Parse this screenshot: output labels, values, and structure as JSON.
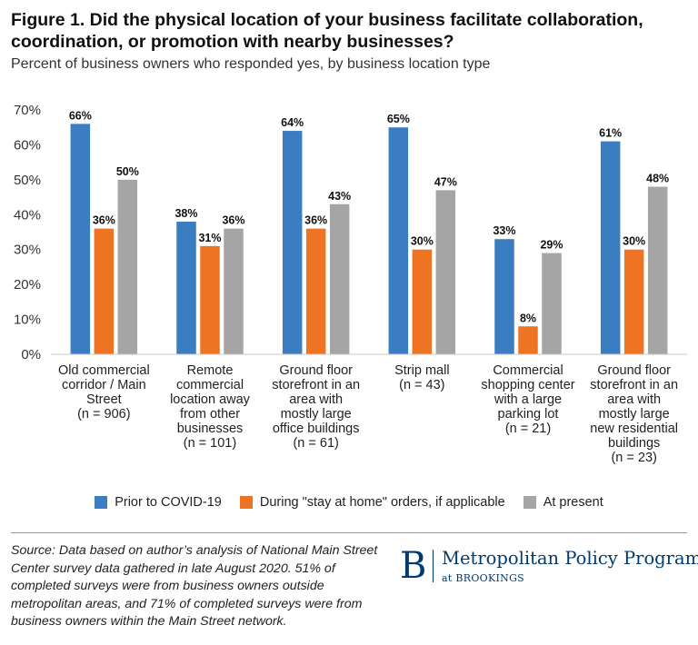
{
  "header": {
    "title": "Figure 1. Did the physical location of your business facilitate collaboration, coordination, or promotion with nearby businesses?",
    "subtitle": "Percent of business owners who responded yes, by business location type"
  },
  "colors": {
    "prior": "#3a7dc1",
    "during": "#ee7323",
    "present": "#a5a5a5",
    "brand": "#003a70"
  },
  "chart_data": {
    "type": "bar",
    "title": "Figure 1. Did the physical location of your business facilitate collaboration, coordination, or promotion with nearby businesses?",
    "subtitle": "Percent of business owners who responded yes, by business location type",
    "xlabel": "",
    "ylabel": "",
    "ylim": [
      0,
      70
    ],
    "yticks": [
      0,
      10,
      20,
      30,
      40,
      50,
      60,
      70
    ],
    "ytick_labels": [
      "0%",
      "10%",
      "20%",
      "30%",
      "40%",
      "50%",
      "60%",
      "70%"
    ],
    "grid": false,
    "legend_position": "bottom",
    "categories": [
      [
        "Old commercial",
        "corridor / Main",
        "Street",
        "(n = 906)"
      ],
      [
        "Remote",
        "commercial",
        "location away",
        "from other",
        "businesses",
        "(n = 101)"
      ],
      [
        "Ground floor",
        "storefront in an",
        "area with",
        "mostly large",
        "office buildings",
        "(n = 61)"
      ],
      [
        "Strip mall",
        "(n = 43)"
      ],
      [
        "Commercial",
        "shopping center",
        "with a large",
        "parking lot",
        "(n = 21)"
      ],
      [
        "Ground floor",
        "storefront in an",
        "area with",
        "mostly large",
        "new residential",
        "buildings",
        "(n = 23)"
      ]
    ],
    "series": [
      {
        "name": "Prior to COVID-19",
        "color": "#3a7dc1",
        "values": [
          66,
          38,
          64,
          65,
          33,
          61
        ],
        "labels": [
          "66%",
          "38%",
          "64%",
          "65%",
          "33%",
          "61%"
        ]
      },
      {
        "name": "During \"stay at home\" orders, if applicable",
        "color": "#ee7323",
        "values": [
          36,
          31,
          36,
          30,
          8,
          30
        ],
        "labels": [
          "36%",
          "31%",
          "36%",
          "30%",
          "8%",
          "30%"
        ]
      },
      {
        "name": "At present",
        "color": "#a5a5a5",
        "values": [
          50,
          36,
          43,
          47,
          29,
          48
        ],
        "labels": [
          "50%",
          "36%",
          "43%",
          "47%",
          "29%",
          "48%"
        ]
      }
    ]
  },
  "legend": [
    {
      "label": "Prior to COVID-19"
    },
    {
      "label": "During \"stay at home\" orders, if applicable"
    },
    {
      "label": "At present"
    }
  ],
  "footer": {
    "source": "Source: Data based on author’s analysis of National Main Street Center survey data gathered in late August 2020. 51% of completed surveys were from business owners outside metropolitan areas, and 71% of completed surveys were from business owners within the Main Street network.",
    "brand_letter": "B",
    "brand_name": "Metropolitan Policy Program",
    "brand_sub": "at BROOKINGS"
  }
}
